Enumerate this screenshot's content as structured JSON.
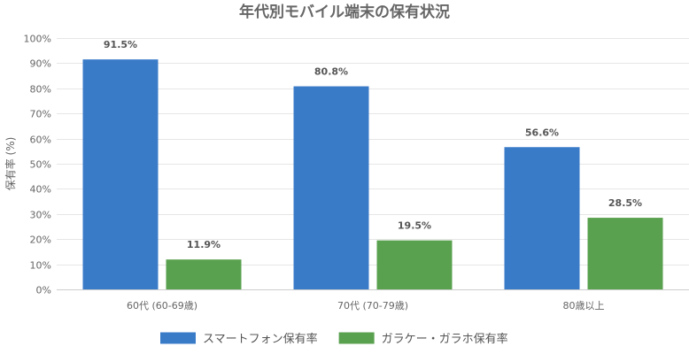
{
  "chart_data": {
    "type": "bar",
    "title": "年代別モバイル端末の保有状況",
    "xlabel": "",
    "ylabel": "保有率 (%)",
    "categories": [
      "60代 (60-69歳)",
      "70代 (70-79歳)",
      "80歳以上"
    ],
    "series": [
      {
        "name": "スマートフォン保有率",
        "values": [
          91.5,
          80.8,
          56.6
        ],
        "color": "#3a7bc8"
      },
      {
        "name": "ガラケー・ガラホ保有率",
        "values": [
          11.9,
          19.5,
          28.5
        ],
        "color": "#5aa14f"
      }
    ],
    "ylim": [
      0,
      100
    ],
    "yticks": [
      0,
      10,
      20,
      30,
      40,
      50,
      60,
      70,
      80,
      90,
      100
    ],
    "tick_suffix": "%",
    "value_suffix": "%",
    "grid": true,
    "legend_position": "bottom"
  }
}
